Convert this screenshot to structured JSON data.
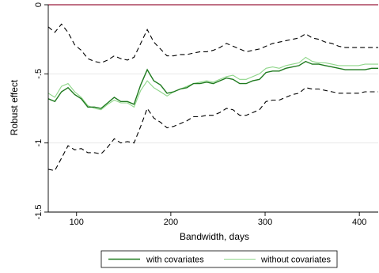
{
  "chart_data": {
    "type": "line",
    "title": "",
    "xlabel": "Bandwidth, days",
    "ylabel": "Robust effect",
    "xlim": [
      70,
      420
    ],
    "ylim": [
      -1.5,
      0
    ],
    "xticks": [
      100,
      200,
      300,
      400
    ],
    "xtick_labels": [
      "100",
      "200",
      "300",
      "400"
    ],
    "yticks": [
      0,
      -0.5,
      -1,
      -1.5
    ],
    "ytick_labels": [
      "0",
      "-.5",
      "-1",
      "-1.5"
    ],
    "grid": true,
    "legend_position": "bottom",
    "legend": [
      "with covariates",
      "without covariates"
    ],
    "colors": {
      "with": "#1f7a1f",
      "without": "#8fd68a",
      "ci": "#000000",
      "zero": "#9b1c3c",
      "grid": "#e6e6e6"
    },
    "x": [
      70,
      77,
      84,
      91,
      98,
      105,
      112,
      119,
      126,
      133,
      140,
      147,
      154,
      161,
      168,
      175,
      182,
      189,
      196,
      203,
      210,
      217,
      224,
      231,
      238,
      245,
      252,
      259,
      266,
      273,
      280,
      287,
      294,
      301,
      308,
      315,
      322,
      329,
      336,
      343,
      350,
      357,
      364,
      371,
      378,
      385,
      392,
      399,
      406,
      413,
      420
    ],
    "series": [
      {
        "name": "with covariates",
        "values": [
          -0.68,
          -0.7,
          -0.63,
          -0.6,
          -0.65,
          -0.68,
          -0.74,
          -0.74,
          -0.75,
          -0.71,
          -0.67,
          -0.7,
          -0.7,
          -0.72,
          -0.58,
          -0.47,
          -0.55,
          -0.58,
          -0.64,
          -0.63,
          -0.61,
          -0.6,
          -0.57,
          -0.57,
          -0.56,
          -0.57,
          -0.55,
          -0.53,
          -0.54,
          -0.57,
          -0.57,
          -0.55,
          -0.54,
          -0.49,
          -0.48,
          -0.48,
          -0.46,
          -0.45,
          -0.44,
          -0.41,
          -0.43,
          -0.43,
          -0.44,
          -0.45,
          -0.46,
          -0.47,
          -0.47,
          -0.47,
          -0.47,
          -0.46,
          -0.46
        ]
      },
      {
        "name": "without covariates",
        "values": [
          -0.64,
          -0.67,
          -0.59,
          -0.57,
          -0.63,
          -0.67,
          -0.73,
          -0.75,
          -0.76,
          -0.72,
          -0.69,
          -0.71,
          -0.71,
          -0.74,
          -0.62,
          -0.55,
          -0.6,
          -0.63,
          -0.66,
          -0.63,
          -0.61,
          -0.59,
          -0.57,
          -0.56,
          -0.55,
          -0.56,
          -0.54,
          -0.52,
          -0.51,
          -0.54,
          -0.54,
          -0.52,
          -0.5,
          -0.46,
          -0.45,
          -0.46,
          -0.44,
          -0.43,
          -0.42,
          -0.38,
          -0.41,
          -0.42,
          -0.42,
          -0.43,
          -0.44,
          -0.44,
          -0.44,
          -0.44,
          -0.43,
          -0.43,
          -0.43
        ]
      },
      {
        "name": "",
        "values": [
          -0.16,
          -0.2,
          -0.14,
          -0.2,
          -0.29,
          -0.33,
          -0.39,
          -0.41,
          -0.42,
          -0.4,
          -0.37,
          -0.39,
          -0.4,
          -0.38,
          -0.28,
          -0.18,
          -0.27,
          -0.32,
          -0.37,
          -0.37,
          -0.36,
          -0.36,
          -0.35,
          -0.34,
          -0.34,
          -0.33,
          -0.31,
          -0.28,
          -0.3,
          -0.32,
          -0.34,
          -0.33,
          -0.32,
          -0.3,
          -0.28,
          -0.27,
          -0.26,
          -0.25,
          -0.24,
          -0.21,
          -0.24,
          -0.25,
          -0.27,
          -0.28,
          -0.3,
          -0.31,
          -0.31,
          -0.31,
          -0.31,
          -0.31,
          -0.31
        ]
      },
      {
        "name": "",
        "values": [
          -1.19,
          -1.2,
          -1.11,
          -1.02,
          -1.05,
          -1.04,
          -1.07,
          -1.07,
          -1.08,
          -1.03,
          -0.97,
          -1.0,
          -0.99,
          -1.0,
          -0.88,
          -0.75,
          -0.82,
          -0.85,
          -0.89,
          -0.88,
          -0.86,
          -0.84,
          -0.81,
          -0.81,
          -0.8,
          -0.8,
          -0.78,
          -0.75,
          -0.76,
          -0.8,
          -0.8,
          -0.78,
          -0.76,
          -0.7,
          -0.69,
          -0.69,
          -0.67,
          -0.65,
          -0.64,
          -0.6,
          -0.61,
          -0.61,
          -0.62,
          -0.63,
          -0.64,
          -0.64,
          -0.64,
          -0.64,
          -0.63,
          -0.63,
          -0.63
        ]
      }
    ]
  }
}
